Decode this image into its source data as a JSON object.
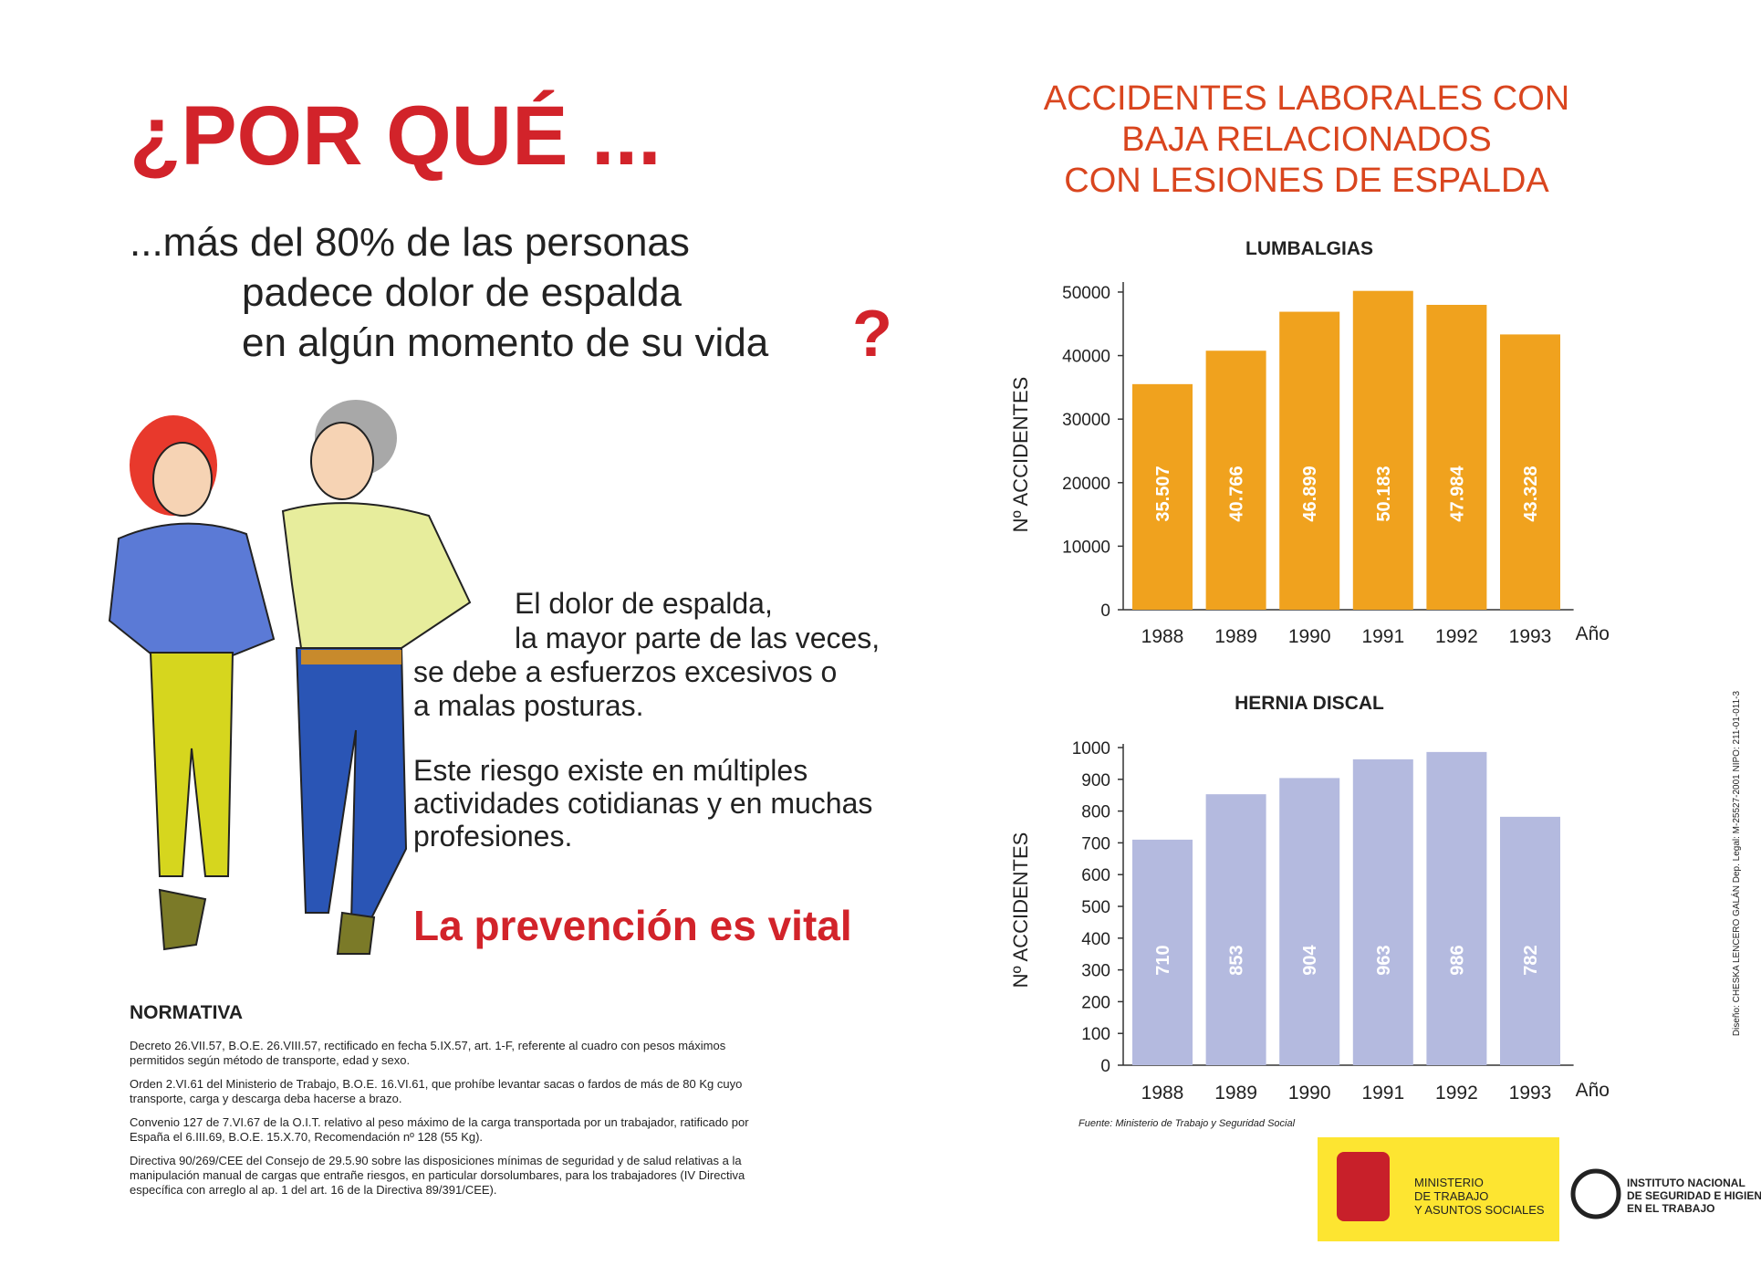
{
  "header": {
    "title": "¿POR QUÉ ...",
    "question_lines": [
      "...más del 80% de las personas",
      "padece dolor de espalda",
      "en algún momento de su vida"
    ],
    "question_mark": "?"
  },
  "body": {
    "paragraph_1": [
      "El dolor de espalda,",
      "la mayor parte de las veces,",
      "se debe a esfuerzos excesivos o",
      "a malas posturas."
    ],
    "paragraph_2": [
      "Este riesgo existe en múltiples",
      "actividades cotidianas y en muchas",
      "profesiones."
    ],
    "slogan": "La prevención es vital"
  },
  "normativa": {
    "title": "NORMATIVA",
    "items": [
      "Decreto 26.VII.57, B.O.E. 26.VIII.57, rectificado en fecha 5.IX.57, art. 1-F, referente al cuadro con pesos máximos permitidos según método de transporte, edad y sexo.",
      "Orden 2.VI.61 del Ministerio de Trabajo, B.O.E. 16.VI.61, que prohíbe levantar sacas o fardos de más de 80 Kg cuyo transporte, carga y descarga deba hacerse a brazo.",
      "Convenio 127 de 7.VI.67 de la O.I.T. relativo al peso máximo de la carga transportada por un trabajador, ratificado por España el 6.III.69, B.O.E. 15.X.70, Recomendación nº 128 (55 Kg).",
      "Directiva 90/269/CEE del Consejo de 29.5.90 sobre las disposiciones mínimas de seguridad y de salud relativas a la manipulación manual de cargas que entrañe riesgos, en particular dorsolumbares, para los trabajadores (IV Directiva específica con arreglo al ap. 1 del art. 16 de la Directiva 89/391/CEE)."
    ]
  },
  "section_title": [
    "ACCIDENTES LABORALES CON",
    "BAJA RELACIONADOS",
    "CON LESIONES DE ESPALDA"
  ],
  "chart_data": [
    {
      "type": "bar",
      "title": "LUMBALGIAS",
      "y_label": "Nº ACCIDENTES",
      "x_label": "Año",
      "categories": [
        "1988",
        "1989",
        "1990",
        "1991",
        "1992",
        "1993"
      ],
      "values": [
        35507,
        40766,
        46899,
        50183,
        47984,
        43328
      ],
      "value_labels": [
        "35.507",
        "40.766",
        "46.899",
        "50.183",
        "47.984",
        "43.328"
      ],
      "color": "#f0a21e",
      "ylim": [
        0,
        51000
      ],
      "yticks": [
        0,
        10000,
        20000,
        30000,
        40000,
        50000
      ]
    },
    {
      "type": "bar",
      "title": "HERNIA DISCAL",
      "y_label": "Nº ACCIDENTES",
      "x_label": "Año",
      "categories": [
        "1988",
        "1989",
        "1990",
        "1991",
        "1992",
        "1993"
      ],
      "values": [
        710,
        853,
        904,
        963,
        986,
        782
      ],
      "color": "#b4badf",
      "ylim": [
        0,
        1000
      ],
      "yticks": [
        0,
        100,
        200,
        300,
        400,
        500,
        600,
        700,
        800,
        900,
        1000
      ]
    }
  ],
  "source": "Fuente: Ministerio de Trabajo y Seguridad Social",
  "logos": {
    "ministry": [
      "MINISTERIO",
      "DE TRABAJO",
      "Y ASUNTOS SOCIALES"
    ],
    "institute": [
      "INSTITUTO NACIONAL",
      "DE SEGURIDAD E HIGIENE",
      "EN EL TRABAJO"
    ]
  },
  "credits": "Diseño: CHESKA LENCERO GALÁN    Dep. Legal: M-25527-2001    NIPO: 211-01-011-3"
}
